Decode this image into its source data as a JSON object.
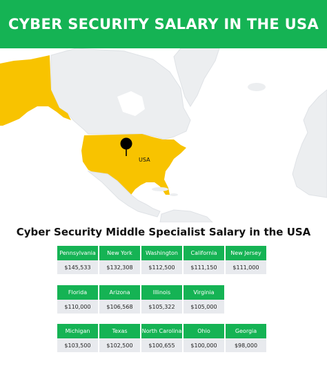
{
  "header": {
    "title": "CYBER SECURITY SALARY IN THE USA"
  },
  "map": {
    "country_label": "USA",
    "highlight_color": "#f8c300",
    "land_color": "#eceef0",
    "pin_icon": "map-pin-icon"
  },
  "section_title": "Cyber Security Middle Specialist Salary in the USA",
  "colors": {
    "accent": "#15b354",
    "value_bg": "#e8eaee"
  },
  "tables": [
    {
      "states": [
        "Pennsylvania",
        "New York",
        "Washington",
        "California",
        "New Jersey"
      ],
      "salaries": [
        "$145,533",
        "$132,308",
        "$112,500",
        "$111,150",
        "$111,000"
      ]
    },
    {
      "states": [
        "Florida",
        "Arizona",
        "Illinois",
        "Virginia"
      ],
      "salaries": [
        "$110,000",
        "$106,568",
        "$105,322",
        "$105,000"
      ]
    },
    {
      "states": [
        "Michigan",
        "Texas",
        "North Carolina",
        "Ohio",
        "Georgia"
      ],
      "salaries": [
        "$103,500",
        "$102,500",
        "$100,655",
        "$100,000",
        "$98,000"
      ]
    }
  ]
}
